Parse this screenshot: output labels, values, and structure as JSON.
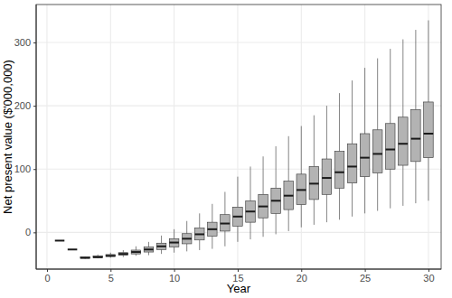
{
  "chart_data": {
    "type": "box",
    "x_label": "Year",
    "y_label": "Net present value ($'000,000)",
    "x": [
      1,
      2,
      3,
      4,
      5,
      6,
      7,
      8,
      9,
      10,
      11,
      12,
      13,
      14,
      15,
      16,
      17,
      18,
      19,
      20,
      21,
      22,
      23,
      24,
      25,
      26,
      27,
      28,
      29,
      30
    ],
    "min": [
      -13,
      -27,
      -42,
      -41,
      -40,
      -39,
      -37,
      -36,
      -34,
      -32,
      -30,
      -28,
      -26,
      -22,
      -15,
      -11,
      -7,
      -3,
      2,
      8,
      12,
      16,
      20,
      25,
      30,
      34,
      38,
      42,
      46,
      50
    ],
    "q1": [
      -13,
      -27,
      -41,
      -40,
      -38,
      -36,
      -34,
      -31,
      -27,
      -23,
      -18,
      -12,
      -6,
      2,
      10,
      16,
      23,
      30,
      36,
      44,
      52,
      60,
      70,
      78,
      88,
      94,
      100,
      106,
      112,
      118
    ],
    "median": [
      -13,
      -27,
      -40,
      -39,
      -37,
      -34,
      -31,
      -27,
      -22,
      -16,
      -10,
      -3,
      5,
      14,
      25,
      33,
      41,
      50,
      58,
      67,
      77,
      86,
      95,
      104,
      118,
      124,
      131,
      140,
      148,
      156
    ],
    "q3": [
      -13,
      -27,
      -39,
      -37,
      -35,
      -32,
      -28,
      -23,
      -17,
      -10,
      -2,
      7,
      16,
      28,
      40,
      50,
      60,
      70,
      81,
      92,
      104,
      116,
      128,
      140,
      156,
      162,
      172,
      182,
      194,
      206
    ],
    "max": [
      -13,
      -27,
      -38,
      -35,
      -32,
      -28,
      -22,
      -15,
      -5,
      5,
      18,
      30,
      45,
      64,
      88,
      104,
      120,
      136,
      152,
      168,
      185,
      200,
      220,
      240,
      260,
      275,
      290,
      305,
      320,
      335
    ],
    "color": "#b3b3b3",
    "xlim": [
      -0.85,
      31
    ],
    "ylim": [
      -58,
      360
    ],
    "xticks": [
      0,
      5,
      10,
      15,
      20,
      25,
      30
    ],
    "yticks": [
      0,
      100,
      200,
      300
    ],
    "grid": true
  }
}
